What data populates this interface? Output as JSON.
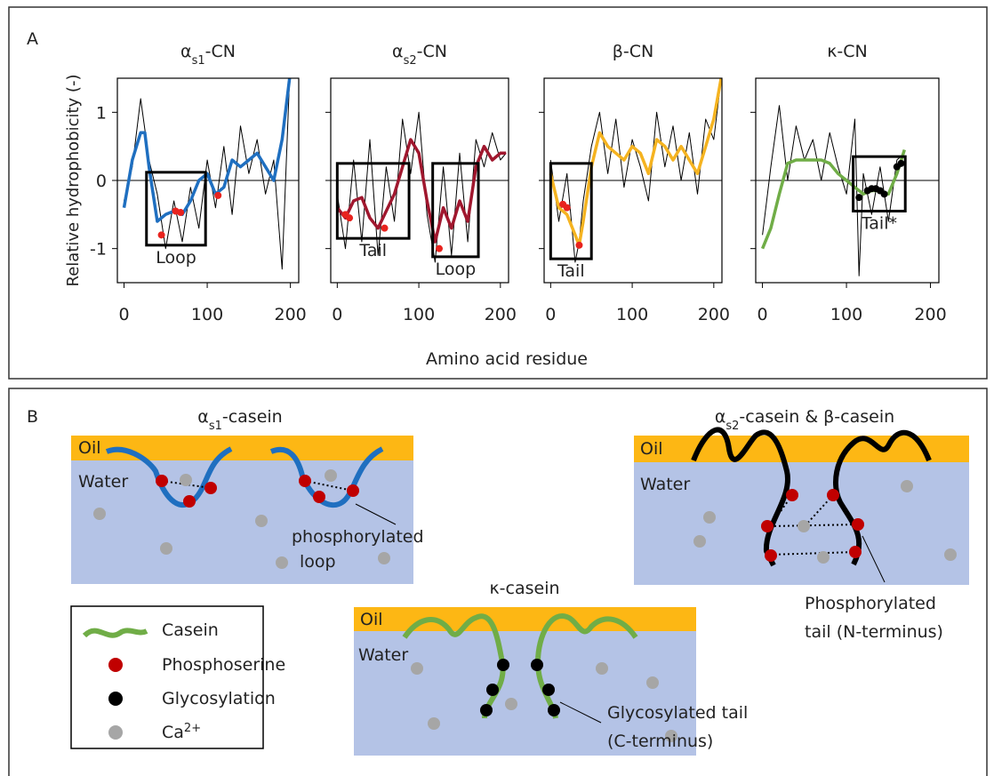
{
  "panel_a": {
    "label": "A",
    "xlabel": "Amino acid residue",
    "ylabel": "Relative hydrophobicity (-)"
  },
  "chart_data": [
    {
      "type": "line",
      "title": [
        "α",
        "s1",
        "-CN"
      ],
      "xlim": [
        -8,
        210
      ],
      "ylim": [
        -1.5,
        1.5
      ],
      "xticks": [
        0,
        100,
        200
      ],
      "yticks": [
        -1,
        0,
        1
      ],
      "series": [
        {
          "color": "#000000",
          "style": "thin",
          "x": [
            0,
            10,
            20,
            30,
            40,
            50,
            60,
            70,
            80,
            90,
            100,
            110,
            120,
            130,
            140,
            150,
            160,
            170,
            180,
            190,
            199
          ],
          "values": [
            -0.3,
            0.2,
            1.2,
            0.3,
            -0.2,
            -1.0,
            -0.3,
            -0.9,
            -0.1,
            -0.7,
            0.3,
            -0.4,
            0.5,
            -0.5,
            0.8,
            0.1,
            0.6,
            -0.2,
            0.3,
            -1.3,
            1.5
          ]
        },
        {
          "color": "#1f6fc0",
          "style": "thick",
          "x": [
            0,
            10,
            20,
            25,
            30,
            40,
            50,
            60,
            70,
            80,
            90,
            100,
            110,
            120,
            130,
            140,
            150,
            160,
            170,
            180,
            190,
            199
          ],
          "values": [
            -0.4,
            0.3,
            0.7,
            0.7,
            0.2,
            -0.6,
            -0.5,
            -0.45,
            -0.5,
            -0.3,
            0,
            0.1,
            -0.2,
            -0.1,
            0.3,
            0.2,
            0.3,
            0.4,
            0.2,
            0,
            0.6,
            1.5
          ]
        },
        {
          "color": "#e8231e",
          "style": "points",
          "x": [
            45,
            62,
            68,
            113
          ],
          "values": [
            -0.8,
            -0.45,
            -0.47,
            -0.22
          ]
        }
      ],
      "annotations": [
        "Loop"
      ]
    },
    {
      "type": "line",
      "title": [
        "α",
        "s2",
        "-CN"
      ],
      "xlim": [
        -8,
        210
      ],
      "ylim": [
        -1.5,
        1.5
      ],
      "xticks": [
        0,
        100,
        200
      ],
      "yticks": [
        -1,
        0,
        1
      ],
      "series": [
        {
          "color": "#000000",
          "style": "thin",
          "x": [
            0,
            10,
            20,
            30,
            40,
            50,
            60,
            70,
            80,
            90,
            100,
            110,
            120,
            130,
            140,
            150,
            160,
            170,
            180,
            190,
            200,
            207
          ],
          "values": [
            -0.2,
            -1.0,
            0.3,
            -0.9,
            0.6,
            -1.1,
            0.2,
            -0.6,
            0.9,
            0.1,
            1.0,
            -0.5,
            -1.2,
            0.2,
            -1.1,
            0.4,
            -0.9,
            0.6,
            0.2,
            0.7,
            0.3,
            0.4
          ]
        },
        {
          "color": "#a0172e",
          "style": "thick",
          "x": [
            0,
            10,
            20,
            30,
            40,
            50,
            60,
            70,
            80,
            90,
            100,
            110,
            120,
            130,
            140,
            150,
            160,
            170,
            180,
            190,
            200,
            207
          ],
          "values": [
            -0.4,
            -0.55,
            -0.3,
            -0.25,
            -0.55,
            -0.7,
            -0.45,
            -0.2,
            0.2,
            0.6,
            0.4,
            -0.3,
            -0.9,
            -0.4,
            -0.7,
            -0.3,
            -0.6,
            0.2,
            0.5,
            0.3,
            0.4,
            0.4
          ]
        },
        {
          "color": "#e8231e",
          "style": "points",
          "x": [
            10,
            15,
            58,
            125
          ],
          "values": [
            -0.5,
            -0.55,
            -0.7,
            -1.0
          ]
        }
      ],
      "annotations": [
        "Tail",
        "Loop"
      ]
    },
    {
      "type": "line",
      "title": [
        "β-CN"
      ],
      "xlim": [
        -8,
        210
      ],
      "ylim": [
        -1.5,
        1.5
      ],
      "xticks": [
        0,
        100,
        200
      ],
      "yticks": [
        -1,
        0,
        1
      ],
      "series": [
        {
          "color": "#000000",
          "style": "thin",
          "x": [
            0,
            10,
            20,
            30,
            35,
            40,
            50,
            60,
            70,
            80,
            90,
            100,
            110,
            120,
            130,
            140,
            150,
            160,
            170,
            180,
            190,
            200,
            209
          ],
          "values": [
            0.3,
            -0.6,
            0.1,
            -1.2,
            -0.9,
            -0.3,
            0.5,
            1.0,
            0.1,
            0.9,
            -0.1,
            0.6,
            0.2,
            -0.3,
            1.0,
            0.2,
            0.8,
            0.0,
            0.7,
            -0.2,
            0.9,
            0.6,
            1.5
          ]
        },
        {
          "color": "#f5b320",
          "style": "thick",
          "x": [
            0,
            10,
            20,
            30,
            35,
            40,
            50,
            60,
            70,
            80,
            90,
            100,
            110,
            120,
            130,
            140,
            150,
            160,
            170,
            180,
            190,
            200,
            209
          ],
          "values": [
            0.1,
            -0.4,
            -0.5,
            -0.8,
            -0.95,
            -0.6,
            0.2,
            0.7,
            0.5,
            0.4,
            0.3,
            0.5,
            0.4,
            0.1,
            0.6,
            0.5,
            0.3,
            0.5,
            0.3,
            0.1,
            0.5,
            0.9,
            1.5
          ]
        },
        {
          "color": "#e8231e",
          "style": "points",
          "x": [
            15,
            20,
            35
          ],
          "values": [
            -0.35,
            -0.4,
            -0.95
          ]
        }
      ],
      "annotations": [
        "Tail"
      ]
    },
    {
      "type": "line",
      "title": [
        "κ-CN"
      ],
      "xlim": [
        -8,
        210
      ],
      "ylim": [
        -1.5,
        1.5
      ],
      "xticks": [
        0,
        100,
        200
      ],
      "yticks": [
        -1,
        0,
        1
      ],
      "series": [
        {
          "color": "#000000",
          "style": "thin",
          "x": [
            0,
            10,
            20,
            30,
            40,
            50,
            60,
            70,
            80,
            90,
            100,
            110,
            115,
            120,
            130,
            140,
            150,
            160,
            169
          ],
          "values": [
            -0.8,
            0.2,
            1.1,
            0.0,
            0.8,
            0.3,
            0.6,
            0.0,
            0.7,
            0.2,
            -0.2,
            0.9,
            -1.4,
            0.1,
            -0.5,
            0.2,
            -0.6,
            0.3,
            0.4
          ]
        },
        {
          "color": "#70ad47",
          "style": "thick",
          "x": [
            0,
            10,
            20,
            30,
            40,
            50,
            60,
            70,
            80,
            90,
            100,
            110,
            120,
            130,
            140,
            150,
            160,
            169
          ],
          "values": [
            -1.0,
            -0.7,
            -0.2,
            0.25,
            0.3,
            0.3,
            0.3,
            0.3,
            0.25,
            0.1,
            0.0,
            -0.1,
            -0.2,
            -0.15,
            -0.15,
            -0.2,
            0.1,
            0.45
          ]
        },
        {
          "color": "#000000",
          "style": "points",
          "x": [
            115,
            125,
            130,
            135,
            140,
            145,
            160,
            165
          ],
          "values": [
            -0.25,
            -0.15,
            -0.12,
            -0.12,
            -0.15,
            -0.2,
            0.2,
            0.25
          ]
        }
      ],
      "annotations": [
        "Tail*"
      ]
    }
  ],
  "panel_b": {
    "label": "B",
    "d1": {
      "title": [
        "α",
        "s1",
        "-casein"
      ],
      "oil": "Oil",
      "water": "Water",
      "note": [
        "phosphorylated",
        "loop"
      ]
    },
    "d2": {
      "title": [
        "α",
        "s2",
        "-casein & β-casein"
      ],
      "oil": "Oil",
      "water": "Water",
      "note": [
        "Phosphorylated",
        "tail (N-terminus)"
      ]
    },
    "d3": {
      "title": [
        "κ-casein"
      ],
      "oil": "Oil",
      "water": "Water",
      "note": [
        "Glycosylated tail",
        "(C-terminus)"
      ]
    },
    "legend": {
      "casein": "Casein",
      "phosphoserine": "Phosphoserine",
      "glycosylation": "Glycosylation",
      "calcium": [
        "Ca",
        "2+"
      ]
    }
  }
}
